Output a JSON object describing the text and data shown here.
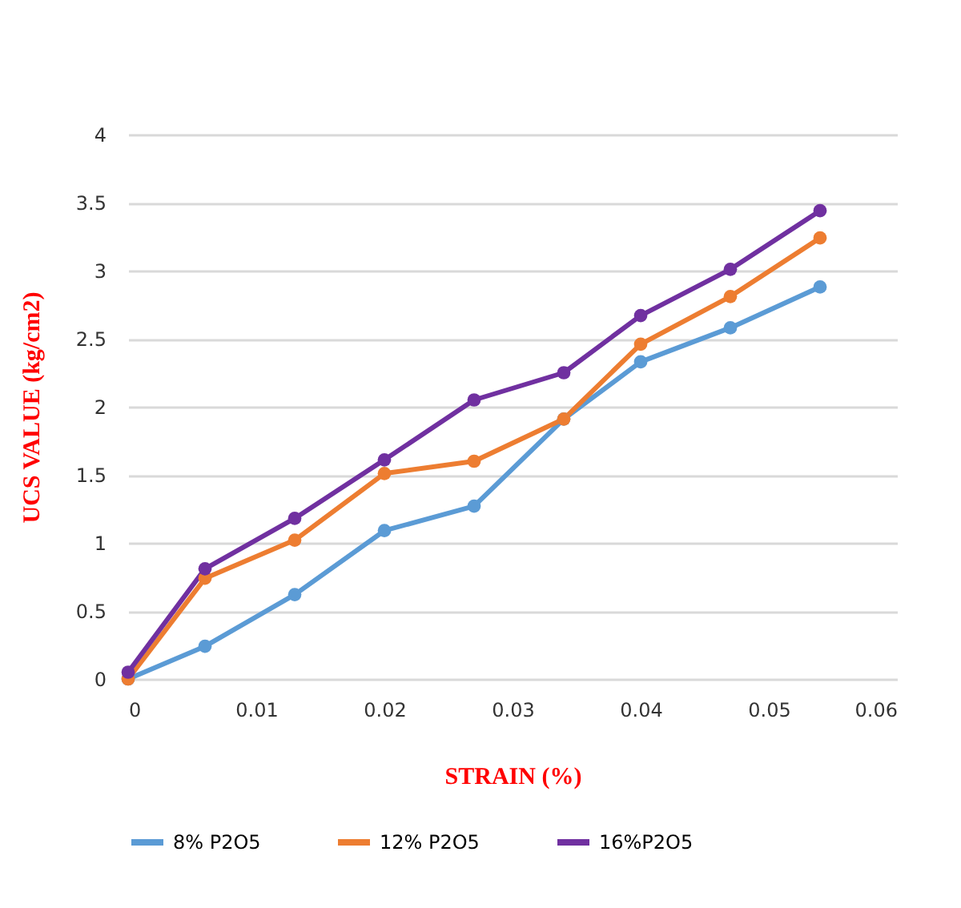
{
  "chart_data": {
    "type": "line",
    "xlabel": "STRAIN (%)",
    "ylabel": "UCS VALUE (kg/cm2)",
    "x": [
      0,
      0.006,
      0.013,
      0.02,
      0.027,
      0.034,
      0.04,
      0.047,
      0.054
    ],
    "series": [
      {
        "name": "8% P2O5",
        "color": "#5b9bd5",
        "values": [
          0,
          0.24,
          0.62,
          1.09,
          1.27,
          1.91,
          2.33,
          2.58,
          2.88
        ]
      },
      {
        "name": "12% P2O5",
        "color": "#ed7d31",
        "values": [
          0,
          0.74,
          1.02,
          1.51,
          1.6,
          1.91,
          2.46,
          2.81,
          3.24
        ]
      },
      {
        "name": "16%P2O5",
        "color": "#7030a0",
        "values": [
          0.05,
          0.81,
          1.18,
          1.61,
          2.05,
          2.25,
          2.67,
          3.01,
          3.44
        ]
      }
    ],
    "xlim": [
      0,
      0.06
    ],
    "xticks": [
      0,
      0.01,
      0.02,
      0.03,
      0.04,
      0.05,
      0.06
    ],
    "ylim": [
      0,
      4
    ],
    "yticks": [
      0,
      0.5,
      1,
      1.5,
      2,
      2.5,
      3,
      3.5,
      4
    ],
    "grid": "y",
    "legend": "bottom",
    "marker": "circle",
    "line_style": "solid"
  }
}
